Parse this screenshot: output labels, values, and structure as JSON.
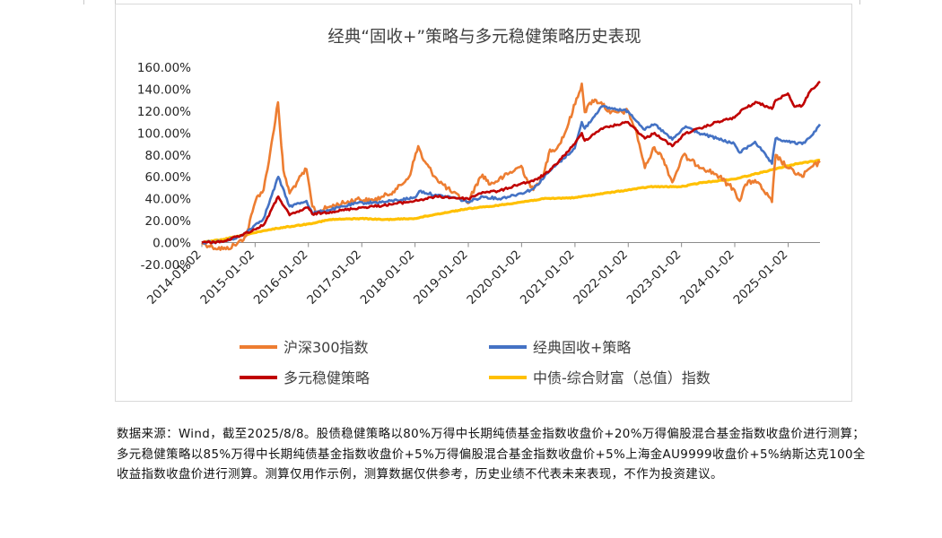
{
  "chart_data": {
    "type": "line",
    "title": "经典“固收+”策略与多元稳健策略历史表现",
    "x_range": [
      "2014-01-02",
      "2025-08-08"
    ],
    "x_ticks": [
      "2014-01-02",
      "2015-01-02",
      "2016-01-02",
      "2017-01-02",
      "2018-01-02",
      "2019-01-02",
      "2020-01-02",
      "2021-01-02",
      "2022-01-02",
      "2023-01-02",
      "2024-01-02",
      "2025-01-02"
    ],
    "ylim": [
      -20,
      160
    ],
    "y_ticks": [
      -20,
      0,
      20,
      40,
      60,
      80,
      100,
      120,
      140,
      160
    ],
    "y_tick_labels": [
      "-20.00%",
      "0.00%",
      "20.00%",
      "40.00%",
      "60.00%",
      "80.00%",
      "100.00%",
      "120.00%",
      "140.00%",
      "160.00%"
    ],
    "y_unit": "%",
    "grid": false,
    "legend_position": "bottom",
    "series": [
      {
        "name": "沪深300指数",
        "color": "#ED7D31",
        "points": [
          [
            "2014-01-02",
            0
          ],
          [
            "2014-03-15",
            -4
          ],
          [
            "2014-06-15",
            -6
          ],
          [
            "2014-09-01",
            -1
          ],
          [
            "2014-11-01",
            6
          ],
          [
            "2014-12-15",
            28
          ],
          [
            "2015-01-15",
            42
          ],
          [
            "2015-03-01",
            48
          ],
          [
            "2015-04-15",
            82
          ],
          [
            "2015-06-08",
            128
          ],
          [
            "2015-07-01",
            88
          ],
          [
            "2015-07-15",
            66
          ],
          [
            "2015-08-26",
            45
          ],
          [
            "2015-10-15",
            55
          ],
          [
            "2015-12-20",
            67
          ],
          [
            "2016-01-29",
            33
          ],
          [
            "2016-03-01",
            28
          ],
          [
            "2016-06-01",
            33
          ],
          [
            "2016-09-01",
            36
          ],
          [
            "2016-12-01",
            40
          ],
          [
            "2017-03-01",
            38
          ],
          [
            "2017-06-01",
            42
          ],
          [
            "2017-09-01",
            49
          ],
          [
            "2017-11-22",
            60
          ],
          [
            "2018-01-24",
            88
          ],
          [
            "2018-03-01",
            75
          ],
          [
            "2018-06-01",
            58
          ],
          [
            "2018-09-01",
            47
          ],
          [
            "2018-12-31",
            36
          ],
          [
            "2019-02-25",
            53
          ],
          [
            "2019-04-10",
            62
          ],
          [
            "2019-06-01",
            53
          ],
          [
            "2019-09-01",
            60
          ],
          [
            "2019-12-31",
            70
          ],
          [
            "2020-02-03",
            59
          ],
          [
            "2020-03-23",
            48
          ],
          [
            "2020-06-01",
            62
          ],
          [
            "2020-07-15",
            85
          ],
          [
            "2020-09-01",
            86
          ],
          [
            "2020-11-01",
            102
          ],
          [
            "2021-02-18",
            145
          ],
          [
            "2021-03-10",
            119
          ],
          [
            "2021-05-01",
            130
          ],
          [
            "2021-07-01",
            128
          ],
          [
            "2021-09-01",
            118
          ],
          [
            "2021-12-31",
            120
          ],
          [
            "2022-03-01",
            100
          ],
          [
            "2022-04-26",
            68
          ],
          [
            "2022-06-30",
            87
          ],
          [
            "2022-09-01",
            76
          ],
          [
            "2022-10-31",
            55
          ],
          [
            "2023-01-15",
            80
          ],
          [
            "2023-03-01",
            75
          ],
          [
            "2023-06-01",
            68
          ],
          [
            "2023-09-01",
            62
          ],
          [
            "2023-12-31",
            48
          ],
          [
            "2024-02-05",
            38
          ],
          [
            "2024-03-15",
            53
          ],
          [
            "2024-05-20",
            57
          ],
          [
            "2024-07-15",
            48
          ],
          [
            "2024-09-13",
            37
          ],
          [
            "2024-10-08",
            80
          ],
          [
            "2024-12-31",
            68
          ],
          [
            "2025-04-08",
            60
          ],
          [
            "2025-06-01",
            68
          ],
          [
            "2025-08-08",
            73
          ]
        ]
      },
      {
        "name": "经典固收+策略",
        "color": "#4472C4",
        "points": [
          [
            "2014-01-02",
            0
          ],
          [
            "2014-06-01",
            1
          ],
          [
            "2014-10-01",
            6
          ],
          [
            "2014-12-31",
            16
          ],
          [
            "2015-03-01",
            22
          ],
          [
            "2015-06-10",
            60
          ],
          [
            "2015-08-26",
            33
          ],
          [
            "2015-12-20",
            38
          ],
          [
            "2016-01-29",
            27
          ],
          [
            "2016-06-01",
            30
          ],
          [
            "2016-12-01",
            36
          ],
          [
            "2017-06-01",
            37
          ],
          [
            "2017-12-31",
            41
          ],
          [
            "2018-02-01",
            47
          ],
          [
            "2018-06-01",
            43
          ],
          [
            "2018-10-01",
            41
          ],
          [
            "2018-12-31",
            37
          ],
          [
            "2019-04-10",
            42
          ],
          [
            "2019-08-01",
            40
          ],
          [
            "2019-12-31",
            45
          ],
          [
            "2020-03-23",
            49
          ],
          [
            "2020-07-10",
            65
          ],
          [
            "2020-12-31",
            86
          ],
          [
            "2021-02-18",
            110
          ],
          [
            "2021-03-10",
            104
          ],
          [
            "2021-07-01",
            124
          ],
          [
            "2021-12-31",
            120
          ],
          [
            "2022-04-26",
            103
          ],
          [
            "2022-07-01",
            108
          ],
          [
            "2022-10-31",
            94
          ],
          [
            "2023-01-31",
            106
          ],
          [
            "2023-05-01",
            100
          ],
          [
            "2023-09-01",
            95
          ],
          [
            "2023-12-31",
            90
          ],
          [
            "2024-02-05",
            82
          ],
          [
            "2024-05-20",
            92
          ],
          [
            "2024-09-13",
            72
          ],
          [
            "2024-10-08",
            95
          ],
          [
            "2024-12-31",
            92
          ],
          [
            "2025-04-08",
            90
          ],
          [
            "2025-06-01",
            96
          ],
          [
            "2025-08-08",
            108
          ]
        ]
      },
      {
        "name": "多元稳健策略",
        "color": "#C00000",
        "points": [
          [
            "2014-01-02",
            0
          ],
          [
            "2014-06-01",
            1
          ],
          [
            "2014-10-01",
            7
          ],
          [
            "2014-12-31",
            12
          ],
          [
            "2015-03-01",
            16
          ],
          [
            "2015-06-10",
            42
          ],
          [
            "2015-08-26",
            25
          ],
          [
            "2015-12-31",
            32
          ],
          [
            "2016-01-29",
            26
          ],
          [
            "2016-06-01",
            28
          ],
          [
            "2016-12-31",
            32
          ],
          [
            "2017-06-01",
            34
          ],
          [
            "2017-12-31",
            38
          ],
          [
            "2018-06-01",
            42
          ],
          [
            "2018-12-31",
            40
          ],
          [
            "2019-04-10",
            46
          ],
          [
            "2019-08-01",
            47
          ],
          [
            "2019-12-31",
            54
          ],
          [
            "2020-03-23",
            56
          ],
          [
            "2020-07-10",
            65
          ],
          [
            "2020-12-31",
            90
          ],
          [
            "2021-02-18",
            100
          ],
          [
            "2021-03-10",
            93
          ],
          [
            "2021-07-01",
            104
          ],
          [
            "2021-12-31",
            110
          ],
          [
            "2022-04-26",
            95
          ],
          [
            "2022-07-01",
            100
          ],
          [
            "2022-10-31",
            88
          ],
          [
            "2023-01-31",
            100
          ],
          [
            "2023-06-01",
            105
          ],
          [
            "2023-09-01",
            110
          ],
          [
            "2023-12-31",
            114
          ],
          [
            "2024-03-01",
            122
          ],
          [
            "2024-06-01",
            128
          ],
          [
            "2024-09-13",
            122
          ],
          [
            "2024-10-08",
            130
          ],
          [
            "2024-12-31",
            136
          ],
          [
            "2025-02-15",
            124
          ],
          [
            "2025-04-08",
            125
          ],
          [
            "2025-06-01",
            138
          ],
          [
            "2025-08-08",
            147
          ]
        ]
      },
      {
        "name": "中债-综合财富（总值）指数",
        "color": "#FFC000",
        "points": [
          [
            "2014-01-02",
            0
          ],
          [
            "2014-06-01",
            3
          ],
          [
            "2014-12-31",
            9
          ],
          [
            "2015-06-01",
            13
          ],
          [
            "2015-12-31",
            17
          ],
          [
            "2016-06-01",
            21
          ],
          [
            "2016-12-31",
            22
          ],
          [
            "2017-06-01",
            21
          ],
          [
            "2017-12-31",
            22
          ],
          [
            "2018-06-01",
            26
          ],
          [
            "2018-12-31",
            31
          ],
          [
            "2019-06-01",
            33
          ],
          [
            "2019-12-31",
            37
          ],
          [
            "2020-06-01",
            40
          ],
          [
            "2020-12-31",
            41
          ],
          [
            "2021-06-01",
            44
          ],
          [
            "2021-12-31",
            48
          ],
          [
            "2022-06-01",
            51
          ],
          [
            "2022-12-31",
            51
          ],
          [
            "2023-06-01",
            55
          ],
          [
            "2023-12-31",
            58
          ],
          [
            "2024-06-01",
            63
          ],
          [
            "2024-12-31",
            70
          ],
          [
            "2025-03-01",
            72
          ],
          [
            "2025-08-08",
            75
          ]
        ]
      }
    ]
  },
  "footnote": "数据来源：Wind，截至2025/8/8。股债稳健策略以80%万得中长期纯债基金指数收盘价+20%万得偏股混合基金指数收盘价进行测算；多元稳健策略以85%万得中长期纯债基金指数收盘价+5%万得偏股混合基金指数收盘价+5%上海金AU9999收盘价+5%纳斯达克100全收益指数收盘价进行测算。测算仅用作示例，测算数据仅供参考，历史业绩不代表未来表现，不作为投资建议。"
}
